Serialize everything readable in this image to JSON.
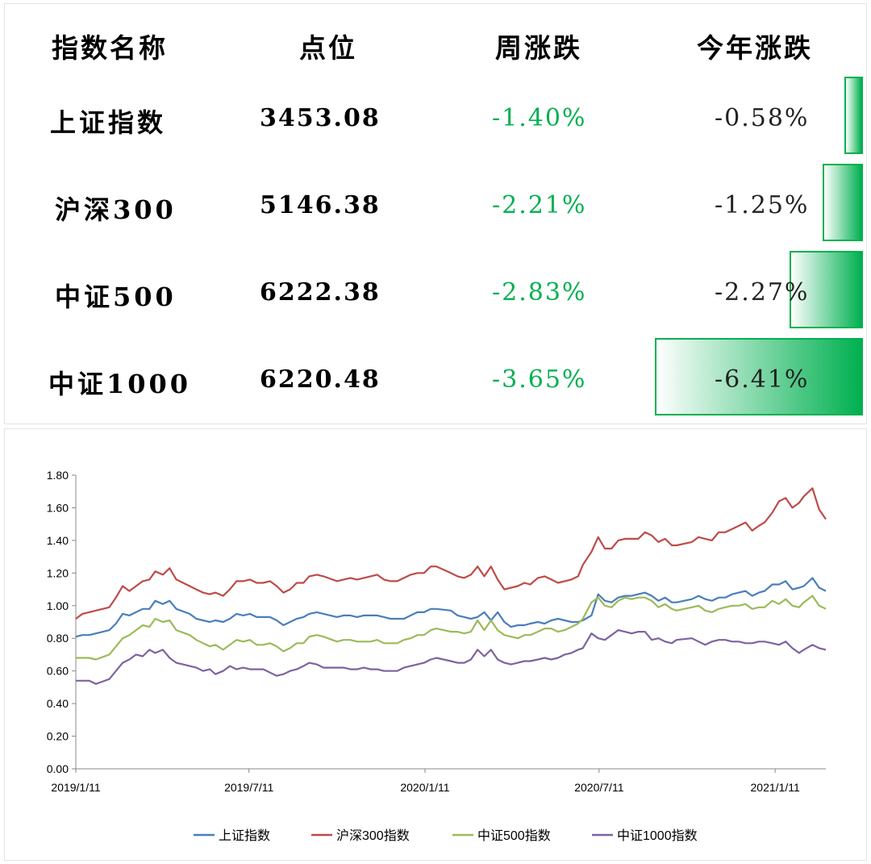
{
  "table": {
    "headers": [
      "指数名称",
      "点位",
      "周涨跌",
      "今年涨跌"
    ],
    "rows": [
      {
        "name": "上证指数",
        "points": "3453.08",
        "week": "-1.40%",
        "ytd": "-0.58%",
        "ytd_value": -0.58
      },
      {
        "name": "沪深300",
        "points": "5146.38",
        "week": "-2.21%",
        "ytd": "-1.25%",
        "ytd_value": -1.25
      },
      {
        "name": "中证500",
        "points": "6222.38",
        "week": "-2.83%",
        "ytd": "-2.27%",
        "ytd_value": -2.27
      },
      {
        "name": "中证1000",
        "points": "6220.48",
        "week": "-3.65%",
        "ytd": "-6.41%",
        "ytd_value": -6.41
      }
    ],
    "colors": {
      "week_text": "#00b050",
      "bar": "#00b050"
    }
  },
  "chart_data": {
    "type": "line",
    "title": "",
    "xlabel": "",
    "ylabel": "",
    "ylim": [
      0,
      1.8
    ],
    "yticks": [
      "0.00",
      "0.20",
      "0.40",
      "0.60",
      "0.80",
      "1.00",
      "1.20",
      "1.40",
      "1.60",
      "1.80"
    ],
    "xtick_labels": [
      "2019/1/11",
      "2019/7/11",
      "2020/1/11",
      "2020/7/11",
      "2021/1/11"
    ],
    "x": [
      "2019/1/11",
      "2019/1/18",
      "2019/1/25",
      "2019/2/1",
      "2019/2/15",
      "2019/2/22",
      "2019/3/1",
      "2019/3/8",
      "2019/3/15",
      "2019/3/22",
      "2019/3/29",
      "2019/4/4",
      "2019/4/12",
      "2019/4/19",
      "2019/4/26",
      "2019/5/10",
      "2019/5/17",
      "2019/5/24",
      "2019/5/31",
      "2019/6/6",
      "2019/6/14",
      "2019/6/21",
      "2019/6/28",
      "2019/7/5",
      "2019/7/12",
      "2019/7/19",
      "2019/7/26",
      "2019/8/2",
      "2019/8/9",
      "2019/8/16",
      "2019/8/23",
      "2019/8/30",
      "2019/9/6",
      "2019/9/12",
      "2019/9/20",
      "2019/9/27",
      "2019/10/11",
      "2019/10/18",
      "2019/10/25",
      "2019/11/1",
      "2019/11/8",
      "2019/11/15",
      "2019/11/22",
      "2019/11/29",
      "2019/12/6",
      "2019/12/13",
      "2019/12/20",
      "2019/12/27",
      "2020/1/3",
      "2020/1/10",
      "2020/1/17",
      "2020/1/23",
      "2020/2/7",
      "2020/2/14",
      "2020/2/21",
      "2020/2/28",
      "2020/3/6",
      "2020/3/13",
      "2020/3/20",
      "2020/3/27",
      "2020/4/3",
      "2020/4/10",
      "2020/4/17",
      "2020/4/24",
      "2020/4/30",
      "2020/5/8",
      "2020/5/15",
      "2020/5/22",
      "2020/5/29",
      "2020/6/5",
      "2020/6/12",
      "2020/6/19",
      "2020/6/24",
      "2020/7/3",
      "2020/7/10",
      "2020/7/17",
      "2020/7/24",
      "2020/7/31",
      "2020/8/7",
      "2020/8/14",
      "2020/8/21",
      "2020/8/28",
      "2020/9/4",
      "2020/9/11",
      "2020/9/18",
      "2020/9/25",
      "2020/9/30",
      "2020/10/16",
      "2020/10/23",
      "2020/10/30",
      "2020/11/6",
      "2020/11/13",
      "2020/11/20",
      "2020/11/27",
      "2020/12/4",
      "2020/12/11",
      "2020/12/18",
      "2020/12/25",
      "2020/12/31",
      "2021/1/8",
      "2021/1/15",
      "2021/1/22",
      "2021/1/29",
      "2021/2/5",
      "2021/2/10",
      "2021/2/19",
      "2021/2/26",
      "2021/3/5"
    ],
    "series": [
      {
        "name": "上证指数",
        "color": "#4a7ebb",
        "values": [
          0.81,
          0.82,
          0.82,
          0.83,
          0.85,
          0.89,
          0.95,
          0.94,
          0.96,
          0.98,
          0.98,
          1.03,
          1.01,
          1.03,
          0.98,
          0.95,
          0.92,
          0.91,
          0.9,
          0.91,
          0.9,
          0.92,
          0.95,
          0.94,
          0.95,
          0.93,
          0.93,
          0.93,
          0.91,
          0.88,
          0.9,
          0.92,
          0.93,
          0.95,
          0.96,
          0.95,
          0.93,
          0.94,
          0.94,
          0.93,
          0.94,
          0.94,
          0.94,
          0.93,
          0.92,
          0.92,
          0.92,
          0.94,
          0.96,
          0.96,
          0.98,
          0.98,
          0.97,
          0.94,
          0.93,
          0.92,
          0.93,
          0.96,
          0.91,
          0.96,
          0.9,
          0.87,
          0.88,
          0.88,
          0.89,
          0.9,
          0.89,
          0.91,
          0.92,
          0.91,
          0.9,
          0.9,
          0.91,
          0.94,
          1.07,
          1.03,
          1.02,
          1.05,
          1.06,
          1.06,
          1.07,
          1.08,
          1.06,
          1.03,
          1.05,
          1.02,
          1.02,
          1.04,
          1.06,
          1.04,
          1.03,
          1.05,
          1.05,
          1.07,
          1.08,
          1.09,
          1.06,
          1.08,
          1.09,
          1.13,
          1.13,
          1.15,
          1.1,
          1.11,
          1.12,
          1.17,
          1.11,
          1.09
        ]
      },
      {
        "name": "沪深300",
        "color": "#be4b48",
        "values": [
          0.92,
          0.95,
          0.96,
          0.97,
          0.99,
          1.05,
          1.12,
          1.09,
          1.12,
          1.15,
          1.16,
          1.21,
          1.19,
          1.23,
          1.16,
          1.12,
          1.1,
          1.08,
          1.07,
          1.08,
          1.06,
          1.1,
          1.15,
          1.15,
          1.16,
          1.14,
          1.14,
          1.15,
          1.12,
          1.08,
          1.1,
          1.14,
          1.14,
          1.18,
          1.19,
          1.18,
          1.15,
          1.16,
          1.17,
          1.16,
          1.17,
          1.18,
          1.19,
          1.16,
          1.15,
          1.15,
          1.17,
          1.19,
          1.2,
          1.2,
          1.24,
          1.24,
          1.2,
          1.18,
          1.17,
          1.19,
          1.24,
          1.18,
          1.24,
          1.16,
          1.1,
          1.11,
          1.12,
          1.14,
          1.13,
          1.17,
          1.18,
          1.16,
          1.14,
          1.15,
          1.16,
          1.18,
          1.25,
          1.33,
          1.42,
          1.35,
          1.35,
          1.4,
          1.41,
          1.41,
          1.41,
          1.45,
          1.43,
          1.39,
          1.41,
          1.37,
          1.37,
          1.39,
          1.42,
          1.41,
          1.4,
          1.45,
          1.45,
          1.47,
          1.49,
          1.51,
          1.46,
          1.49,
          1.51,
          1.57,
          1.64,
          1.66,
          1.6,
          1.63,
          1.67,
          1.72,
          1.59,
          1.53
        ]
      },
      {
        "name": "中证500",
        "color": "#9bbb59",
        "values": [
          0.68,
          0.68,
          0.68,
          0.67,
          0.7,
          0.75,
          0.8,
          0.82,
          0.85,
          0.88,
          0.87,
          0.92,
          0.9,
          0.91,
          0.85,
          0.82,
          0.79,
          0.77,
          0.75,
          0.76,
          0.73,
          0.76,
          0.79,
          0.78,
          0.79,
          0.76,
          0.76,
          0.77,
          0.75,
          0.72,
          0.74,
          0.77,
          0.77,
          0.81,
          0.82,
          0.81,
          0.78,
          0.79,
          0.79,
          0.78,
          0.78,
          0.78,
          0.79,
          0.77,
          0.77,
          0.77,
          0.79,
          0.8,
          0.82,
          0.82,
          0.85,
          0.86,
          0.84,
          0.84,
          0.83,
          0.84,
          0.91,
          0.85,
          0.91,
          0.85,
          0.82,
          0.81,
          0.8,
          0.82,
          0.82,
          0.84,
          0.86,
          0.86,
          0.84,
          0.85,
          0.87,
          0.89,
          0.92,
          1.02,
          1.05,
          1.0,
          0.99,
          1.03,
          1.05,
          1.04,
          1.05,
          1.05,
          1.03,
          0.99,
          1.01,
          0.98,
          0.97,
          0.99,
          1.0,
          0.97,
          0.96,
          0.98,
          0.99,
          1.0,
          1.0,
          1.01,
          0.98,
          0.99,
          0.99,
          1.03,
          1.01,
          1.04,
          1.0,
          0.99,
          1.02,
          1.06,
          1.0,
          0.98
        ]
      },
      {
        "name": "中证1000",
        "color": "#7e62a1",
        "values": [
          0.54,
          0.54,
          0.54,
          0.52,
          0.55,
          0.6,
          0.65,
          0.67,
          0.7,
          0.69,
          0.73,
          0.71,
          0.73,
          0.68,
          0.65,
          0.63,
          0.62,
          0.6,
          0.61,
          0.58,
          0.6,
          0.63,
          0.61,
          0.62,
          0.61,
          0.61,
          0.61,
          0.59,
          0.57,
          0.58,
          0.6,
          0.61,
          0.63,
          0.65,
          0.64,
          0.62,
          0.62,
          0.62,
          0.61,
          0.61,
          0.62,
          0.61,
          0.61,
          0.6,
          0.6,
          0.6,
          0.62,
          0.63,
          0.64,
          0.65,
          0.67,
          0.68,
          0.66,
          0.65,
          0.65,
          0.67,
          0.73,
          0.69,
          0.73,
          0.67,
          0.65,
          0.64,
          0.65,
          0.66,
          0.66,
          0.67,
          0.68,
          0.67,
          0.68,
          0.7,
          0.71,
          0.73,
          0.74,
          0.83,
          0.8,
          0.79,
          0.82,
          0.85,
          0.84,
          0.83,
          0.84,
          0.84,
          0.79,
          0.8,
          0.78,
          0.77,
          0.79,
          0.8,
          0.78,
          0.76,
          0.78,
          0.79,
          0.79,
          0.78,
          0.78,
          0.77,
          0.77,
          0.78,
          0.78,
          0.77,
          0.76,
          0.78,
          0.74,
          0.71,
          0.73,
          0.76,
          0.74,
          0.73
        ]
      }
    ],
    "legend": {
      "placement": "bottom",
      "labels": [
        "上证指数",
        "沪深300指数",
        "中证500指数",
        "中证1000指数"
      ]
    }
  }
}
